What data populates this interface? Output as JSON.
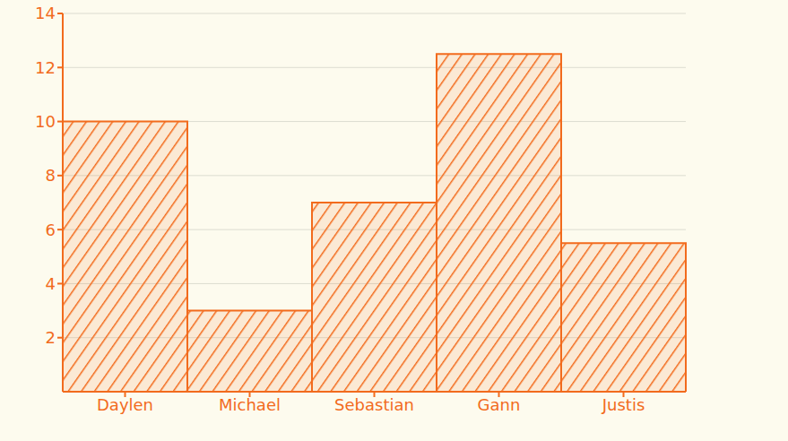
{
  "chart_data": {
    "type": "bar",
    "categories": [
      "Daylen",
      "Michael",
      "Sebastian",
      "Gann",
      "Justis"
    ],
    "values": [
      10,
      3,
      7,
      12.5,
      5.5
    ],
    "color": "#f26b1d",
    "ylim": [
      0,
      14
    ],
    "yticks": [
      2,
      4,
      6,
      8,
      10,
      12,
      14
    ],
    "grid": true
  }
}
